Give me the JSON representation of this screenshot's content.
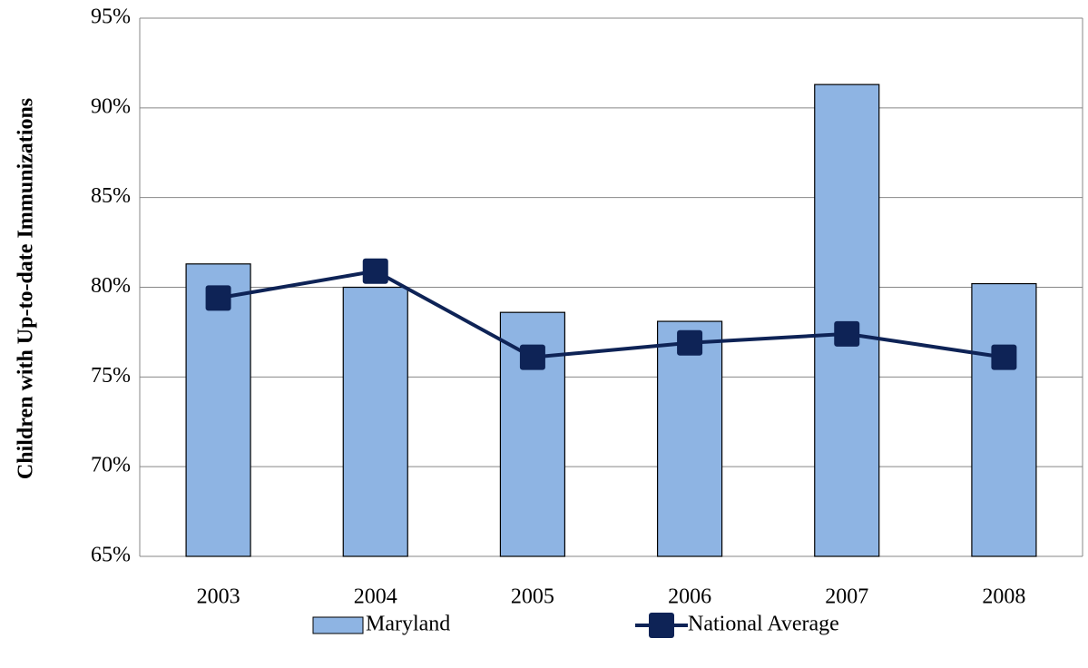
{
  "chart_data": {
    "type": "bar",
    "y_label": "Children with Up-to-date Immunizations",
    "categories": [
      "2003",
      "2004",
      "2005",
      "2006",
      "2007",
      "2008"
    ],
    "series": [
      {
        "name": "Maryland",
        "type": "bar",
        "color": "#8eb4e3",
        "values": [
          81.3,
          80.0,
          78.6,
          78.1,
          91.3,
          80.2
        ]
      },
      {
        "name": "National Average",
        "type": "line",
        "color": "#0e2356",
        "values": [
          79.4,
          80.9,
          76.1,
          76.9,
          77.4,
          76.1
        ]
      }
    ],
    "ylim": [
      65,
      95
    ],
    "yticks": [
      {
        "value": 65,
        "label": "65%"
      },
      {
        "value": 70,
        "label": "70%"
      },
      {
        "value": 75,
        "label": "75%"
      },
      {
        "value": 80,
        "label": "80%"
      },
      {
        "value": 85,
        "label": "85%"
      },
      {
        "value": 90,
        "label": "90%"
      },
      {
        "value": 95,
        "label": "95%"
      }
    ],
    "grid": true,
    "legend": "bottom"
  }
}
